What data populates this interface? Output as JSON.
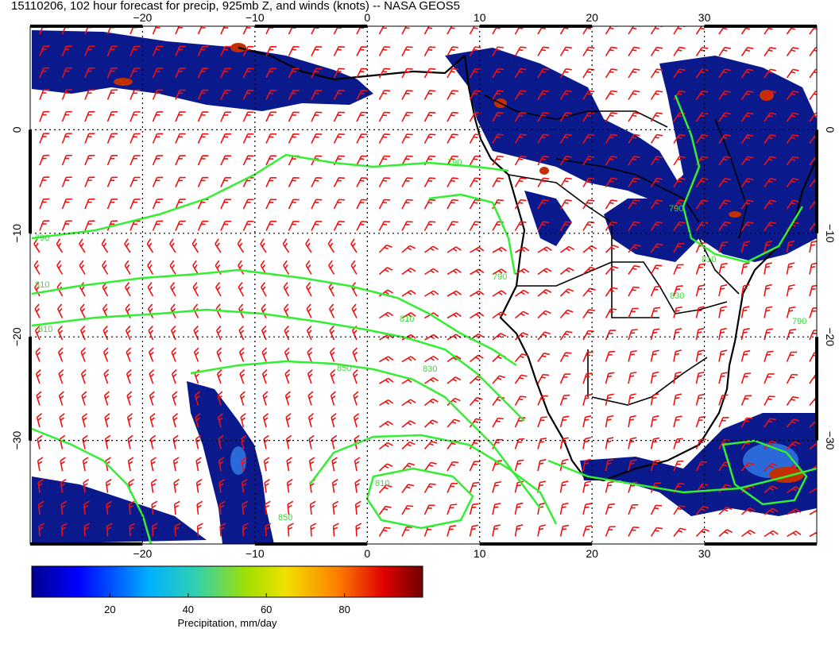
{
  "title": "15110206, 102 hour forecast for precip, 925mb Z, and winds (knots) -- NASA GEOS5",
  "axes": {
    "lon_ticks": [
      "−20",
      "−10",
      "0",
      "10",
      "20",
      "30"
    ],
    "lat_ticks": [
      "0",
      "−10",
      "−20",
      "−30"
    ],
    "lon_values": [
      -20,
      -10,
      0,
      10,
      20,
      30
    ],
    "lat_values": [
      0,
      -10,
      -20,
      -30
    ],
    "lon_range": [
      -30,
      40
    ],
    "lat_range": [
      -40,
      10
    ]
  },
  "contours": {
    "variable": "925mb geopotential height",
    "labels": [
      "790",
      "790",
      "810",
      "810",
      "810",
      "830",
      "850",
      "850",
      "810",
      "790",
      "790",
      "810",
      "830",
      "790"
    ]
  },
  "colorbar": {
    "ticks": [
      "20",
      "40",
      "60",
      "80"
    ],
    "tick_values": [
      20,
      40,
      60,
      80
    ],
    "range": [
      0,
      100
    ],
    "label": "Precipitation, mm/day",
    "colors": [
      "#000090",
      "#0000ff",
      "#00b0ff",
      "#30d0b0",
      "#a0e000",
      "#f0e000",
      "#ff8000",
      "#e00000",
      "#700000"
    ]
  },
  "colors": {
    "precip_low": "#0a1a8c",
    "precip_mid": "#2a6ad8",
    "precip_high": "#c03000",
    "contour": "#33ee33",
    "wind": "#ee1111",
    "coast": "#000000",
    "grid": "#000000"
  }
}
